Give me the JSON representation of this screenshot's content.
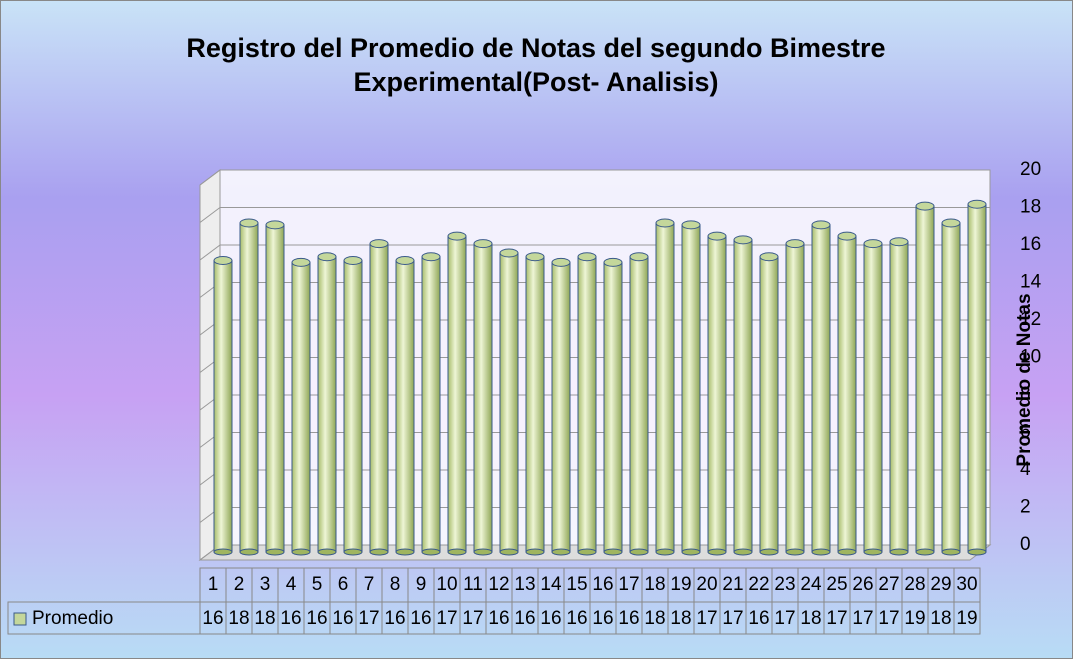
{
  "chart_data": {
    "type": "bar3d",
    "title": "Registro del Promedio de Notas del segundo Bimestre Experimental(Post- Analisis)",
    "y_axis_label": "Promedio de Notas",
    "categories": [
      "1",
      "2",
      "3",
      "4",
      "5",
      "6",
      "7",
      "8",
      "9",
      "10",
      "11",
      "12",
      "13",
      "14",
      "15",
      "16",
      "17",
      "18",
      "19",
      "20",
      "21",
      "22",
      "23",
      "24",
      "25",
      "26",
      "27",
      "28",
      "29",
      "30"
    ],
    "series": [
      {
        "name": "Promedio",
        "color": "#c4d79b",
        "values": [
          15.6,
          17.6,
          17.5,
          15.5,
          15.8,
          15.6,
          16.5,
          15.6,
          15.8,
          16.9,
          16.5,
          16.0,
          15.8,
          15.5,
          15.8,
          15.5,
          15.8,
          17.6,
          17.5,
          16.9,
          16.7,
          15.8,
          16.5,
          17.5,
          16.9,
          16.5,
          16.6,
          18.5,
          17.6,
          18.6
        ],
        "value_labels": [
          "16",
          "18",
          "18",
          "16",
          "16",
          "16",
          "17",
          "16",
          "16",
          "17",
          "17",
          "16",
          "16",
          "16",
          "16",
          "16",
          "16",
          "18",
          "18",
          "17",
          "17",
          "16",
          "17",
          "18",
          "17",
          "17",
          "17",
          "19",
          "18",
          "19"
        ]
      }
    ],
    "ylim": [
      0,
      20
    ],
    "yticks": [
      0,
      2,
      4,
      6,
      8,
      10,
      12,
      14,
      16,
      18,
      20
    ],
    "grid": true
  }
}
